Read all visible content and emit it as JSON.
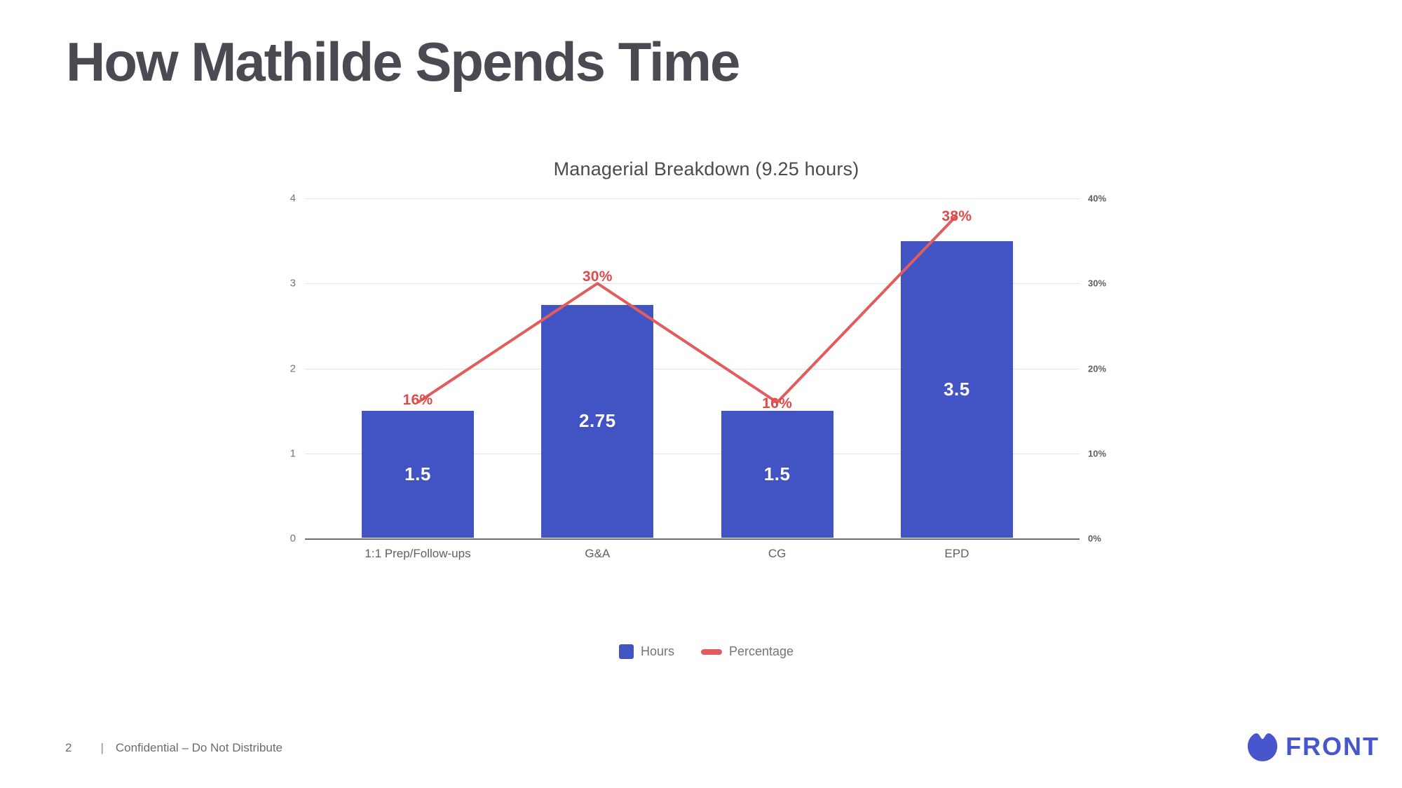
{
  "slide": {
    "title": "How Mathilde Spends Time",
    "footer": {
      "page_number": "2",
      "separator": "|",
      "text": "Confidential – Do Not Distribute"
    },
    "logo": {
      "text": "FRONT",
      "color": "#4856cd"
    }
  },
  "chart_data": {
    "type": "bar",
    "subtype": "combo-bar-line",
    "title": "Managerial Breakdown (9.25 hours)",
    "categories": [
      "1:1 Prep/Follow-ups",
      "G&A",
      "CG",
      "EPD"
    ],
    "series": [
      {
        "name": "Hours",
        "type": "bar",
        "axis": "left",
        "color": "#4254c3",
        "values": [
          1.5,
          2.75,
          1.5,
          3.5
        ],
        "labels": [
          "1.5",
          "2.75",
          "1.5",
          "3.5"
        ]
      },
      {
        "name": "Percentage",
        "type": "line",
        "axis": "right",
        "color": "#e25c5c",
        "values": [
          16,
          30,
          16,
          38
        ],
        "labels": [
          "16%",
          "30%",
          "16%",
          "38%"
        ]
      }
    ],
    "left_axis": {
      "min": 0,
      "max": 4,
      "ticks": [
        "4",
        "3",
        "2",
        "1",
        "0"
      ]
    },
    "right_axis": {
      "min": 0,
      "max": 40,
      "ticks": [
        "40%",
        "30%",
        "20%",
        "10%",
        "0%"
      ]
    },
    "grid": true,
    "legend_position": "bottom"
  }
}
